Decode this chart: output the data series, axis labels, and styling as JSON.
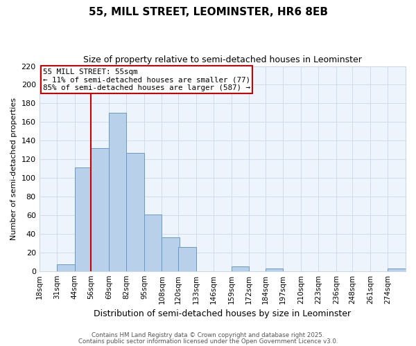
{
  "title": "55, MILL STREET, LEOMINSTER, HR6 8EB",
  "subtitle": "Size of property relative to semi-detached houses in Leominster",
  "xlabel": "Distribution of semi-detached houses by size in Leominster",
  "ylabel": "Number of semi-detached properties",
  "bin_labels": [
    "18sqm",
    "31sqm",
    "44sqm",
    "56sqm",
    "69sqm",
    "82sqm",
    "95sqm",
    "108sqm",
    "120sqm",
    "133sqm",
    "146sqm",
    "159sqm",
    "172sqm",
    "184sqm",
    "197sqm",
    "210sqm",
    "223sqm",
    "236sqm",
    "248sqm",
    "261sqm",
    "274sqm"
  ],
  "bin_edges": [
    18,
    31,
    44,
    56,
    69,
    82,
    95,
    108,
    120,
    133,
    146,
    159,
    172,
    184,
    197,
    210,
    223,
    236,
    248,
    261,
    274
  ],
  "bin_width": 13,
  "counts": [
    0,
    7,
    111,
    132,
    170,
    127,
    61,
    36,
    26,
    0,
    0,
    5,
    0,
    3,
    0,
    0,
    0,
    0,
    0,
    0,
    3
  ],
  "bar_color": "#b8d0ea",
  "bar_edge_color": "#6699cc",
  "property_label": "55 MILL STREET: 55sqm",
  "annotation_line1": "← 11% of semi-detached houses are smaller (77)",
  "annotation_line2": "85% of semi-detached houses are larger (587) →",
  "vline_color": "#cc0000",
  "vline_x": 56,
  "annotation_box_color": "#ffffff",
  "annotation_box_edge": "#cc0000",
  "grid_color": "#c8d8e8",
  "background_color": "#ffffff",
  "plot_bg_color": "#eef4fb",
  "ylim": [
    0,
    220
  ],
  "yticks": [
    0,
    20,
    40,
    60,
    80,
    100,
    120,
    140,
    160,
    180,
    200,
    220
  ],
  "footer1": "Contains HM Land Registry data © Crown copyright and database right 2025.",
  "footer2": "Contains public sector information licensed under the Open Government Licence v3.0.",
  "title_fontsize": 11,
  "subtitle_fontsize": 9,
  "ylabel_fontsize": 8,
  "xlabel_fontsize": 9
}
